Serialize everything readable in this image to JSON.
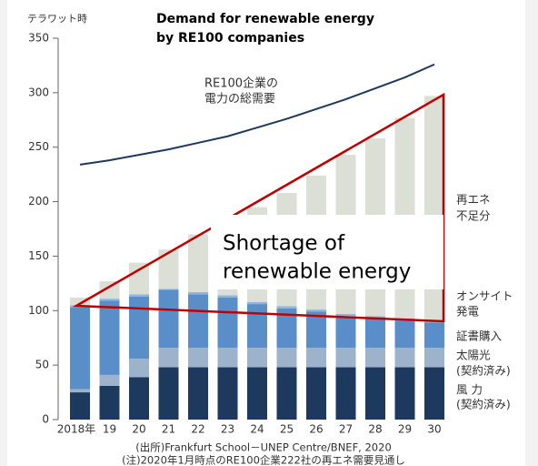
{
  "chart_data": {
    "type": "stacked_bar_line",
    "title_lines": [
      "Demand for renewable energy",
      "by RE100 companies"
    ],
    "y_unit": "テラワット時",
    "categories": [
      "2018年",
      "19",
      "20",
      "21",
      "22",
      "23",
      "24",
      "25",
      "26",
      "27",
      "28",
      "29",
      "30"
    ],
    "series": [
      {
        "name": "風 力",
        "name_note": "(契約済み)",
        "color": "#1d3a5e",
        "values": [
          25,
          31,
          39,
          48,
          48,
          48,
          48,
          48,
          48,
          48,
          48,
          48,
          48
        ]
      },
      {
        "name": "太陽光",
        "name_note": "(契約済み)",
        "color": "#9db3cb",
        "values": [
          3,
          10,
          17,
          18,
          18,
          18,
          18,
          18,
          18,
          18,
          18,
          18,
          18
        ]
      },
      {
        "name": "証書購入",
        "color": "#5a8ec8",
        "values": [
          75,
          68,
          57,
          53,
          49,
          46,
          40,
          36,
          33,
          29,
          27,
          25,
          23
        ]
      },
      {
        "name": "オンサイト",
        "name_note": "発電",
        "color": "#8fb4dd",
        "values": [
          2,
          2,
          2,
          1,
          2,
          2,
          2,
          2,
          2,
          2,
          2,
          2,
          2
        ]
      },
      {
        "name": "再エネ",
        "name_note": "不足分",
        "color": "#dcdfd6",
        "values": [
          7,
          16,
          29,
          36,
          53,
          68,
          87,
          104,
          123,
          146,
          163,
          184,
          206
        ]
      }
    ],
    "line": {
      "name_lines": [
        "RE100企業の",
        "電力の総需要"
      ],
      "color": "#1d3a5e",
      "values": [
        234,
        238,
        243,
        248,
        254,
        260,
        268,
        276,
        285,
        294,
        304,
        314,
        326
      ]
    },
    "ylim": [
      0,
      350
    ],
    "yticks": [
      0,
      50,
      100,
      150,
      200,
      250,
      300,
      350
    ],
    "annotation_lines": [
      "Shortage of",
      "renewable energy"
    ],
    "source_lines": [
      "(出所)Frankfurt School－UNEP Centre/BNEF, 2020",
      "(注)2020年1月時点のRE100企業222社の再エネ需要見通し"
    ]
  }
}
